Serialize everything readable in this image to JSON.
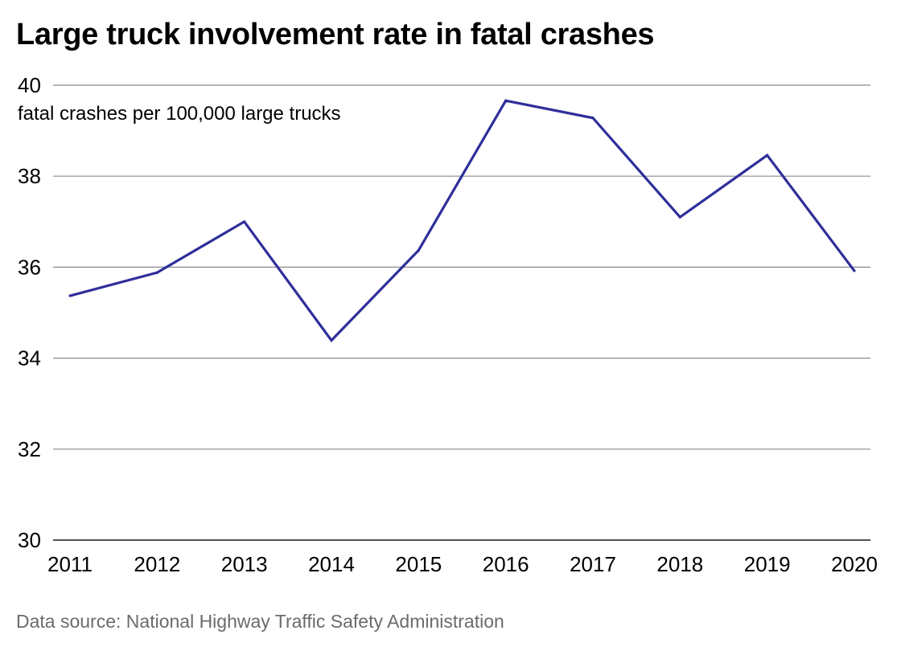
{
  "chart_data": {
    "type": "line",
    "title": "Large truck involvement rate in fatal crashes",
    "ylabel": "fatal crashes per 100,000 large trucks",
    "xlabel": "",
    "categories": [
      "2011",
      "2012",
      "2013",
      "2014",
      "2015",
      "2016",
      "2017",
      "2018",
      "2019",
      "2020"
    ],
    "series": [
      {
        "name": "Large truck involvement rate",
        "values": [
          35.37,
          35.88,
          37.0,
          34.39,
          36.37,
          39.66,
          39.28,
          37.1,
          38.46,
          35.92
        ]
      }
    ],
    "ylim": [
      30,
      40
    ],
    "yticks": [
      30,
      32,
      34,
      36,
      38,
      40
    ],
    "grid": true,
    "legend": "none",
    "line_color": "#2f2e9a",
    "grid_color": "#8a8a8a",
    "axis_color": "#1a1a1a"
  },
  "footer": {
    "source": "Data source: National Highway Traffic Safety Administration"
  }
}
